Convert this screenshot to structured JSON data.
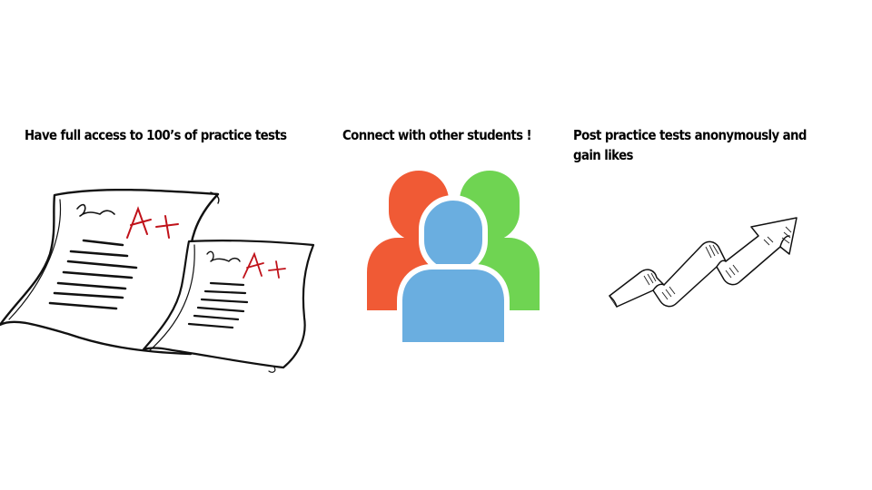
{
  "slide": {
    "features": [
      {
        "title": "Have full access to 100’s of practice tests",
        "icon": "graded-tests-icon",
        "grade_large": "A+",
        "grade_small": "A+",
        "grade_color": "#c0121a"
      },
      {
        "title": "Connect with other students !",
        "icon": "students-group-icon",
        "colors": {
          "left_person": "#f05a35",
          "right_person": "#6fd452",
          "front_person": "#6aaee0"
        }
      },
      {
        "title": "Post practice tests anonymously and gain likes",
        "icon": "rising-arrow-icon"
      }
    ]
  }
}
